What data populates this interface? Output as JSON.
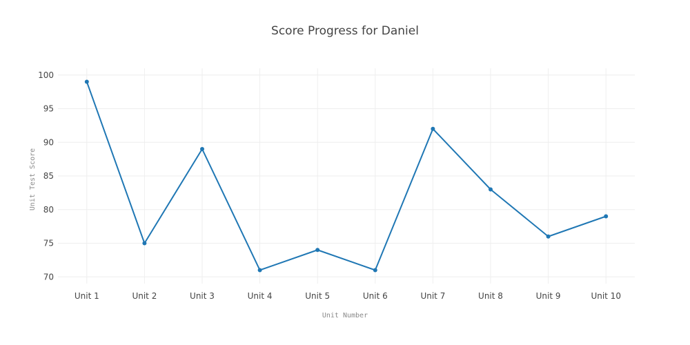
{
  "chart_data": {
    "type": "line",
    "title": "Score Progress for Daniel",
    "xlabel": "Unit Number",
    "ylabel": "Unit Test Score",
    "categories": [
      "Unit 1",
      "Unit 2",
      "Unit 3",
      "Unit 4",
      "Unit 5",
      "Unit 6",
      "Unit 7",
      "Unit 8",
      "Unit 9",
      "Unit 10"
    ],
    "series": [
      {
        "values": [
          99,
          75,
          89,
          71,
          74,
          71,
          92,
          83,
          76,
          79
        ],
        "color": "#1f77b4"
      }
    ],
    "ylim": [
      69,
      101
    ],
    "yticks": [
      70,
      75,
      80,
      85,
      90,
      95,
      100
    ],
    "grid": true,
    "legend": "none"
  }
}
